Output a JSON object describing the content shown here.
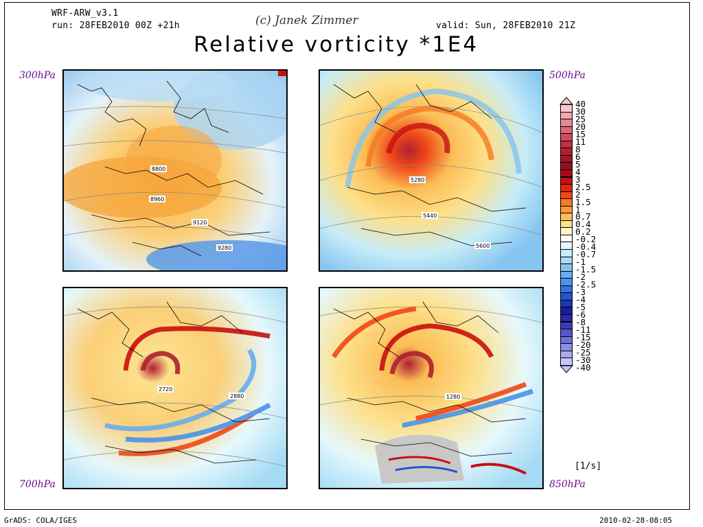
{
  "header": {
    "model": "WRF-ARW_v3.1",
    "run": "run: 28FEB2010 00Z +21h",
    "copyright": "(c) Janek Zimmer",
    "valid": "valid: Sun, 28FEB2010 21Z",
    "title": "Relative vorticity *1E4"
  },
  "panels": [
    {
      "level": "300hPa",
      "contours": [
        "8800",
        "8960",
        "9120",
        "9280"
      ]
    },
    {
      "level": "500hPa",
      "contours": [
        "5280",
        "5440",
        "5600"
      ]
    },
    {
      "level": "700hPa",
      "contours": [
        "2720",
        "2880"
      ]
    },
    {
      "level": "850hPa",
      "contours": [
        "1280"
      ]
    }
  ],
  "colorbar": {
    "labels": [
      "40",
      "30",
      "25",
      "20",
      "15",
      "11",
      "8",
      "6",
      "5",
      "4",
      "3",
      "2.5",
      "2",
      "1.5",
      "1",
      "0.7",
      "0.4",
      "0.2",
      "-0.2",
      "-0.4",
      "-0.7",
      "-1",
      "-1.5",
      "-2",
      "-2.5",
      "-3",
      "-4",
      "-5",
      "-6",
      "-8",
      "-11",
      "-15",
      "-20",
      "-25",
      "-30",
      "-40"
    ],
    "colors": [
      "#f6c9cf",
      "#eea8b1",
      "#e88893",
      "#de6877",
      "#d24a5b",
      "#c23140",
      "#b02030",
      "#a01828",
      "#941020",
      "#a80e10",
      "#c81010",
      "#e02810",
      "#f04818",
      "#f57a20",
      "#f89a3a",
      "#fbbd55",
      "#fde08a",
      "#fff4c8",
      "#ffffff",
      "#e6f8fc",
      "#c6ecf8",
      "#a4daf4",
      "#85c5f0",
      "#66aef0",
      "#4a92ea",
      "#3474e0",
      "#2454cc",
      "#1a38b0",
      "#1b1c98",
      "#2a2aa8",
      "#3c3cbc",
      "#5656cc",
      "#7070da",
      "#8c8ce6",
      "#aaaaf0",
      "#c6c6f8"
    ],
    "unit": "[1/s]"
  },
  "footer": {
    "left": "GrADS: COLA/IGES",
    "right": "2010-02-28-08:05"
  }
}
